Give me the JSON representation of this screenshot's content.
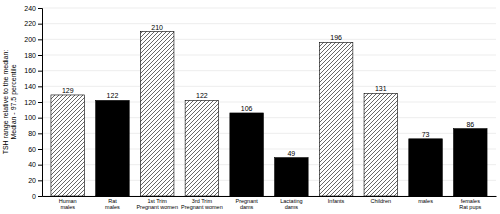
{
  "chart_data": {
    "type": "bar",
    "categories": [
      "Human\nmales",
      "Rat\nmales",
      "1st Trim\nPregnant women",
      "3rd Trim\nPregnant women",
      "Pregnant\ndams",
      "Lactating\ndams",
      "Infants",
      "Children",
      "males",
      "females\nRat pups"
    ],
    "values": [
      129,
      122,
      210,
      122,
      106,
      49,
      196,
      131,
      73,
      86
    ],
    "colors": [
      "white",
      "black",
      "white",
      "white",
      "black",
      "black",
      "white",
      "white",
      "black",
      "black"
    ],
    "ylabel": "TSH range relative to the median:\nMedian - 97.5 percentile",
    "ylim": [
      0,
      240
    ],
    "yticks": [
      0,
      20,
      40,
      60,
      80,
      100,
      120,
      140,
      160,
      180,
      200,
      220,
      240
    ],
    "grid": true,
    "data_labels": true
  }
}
